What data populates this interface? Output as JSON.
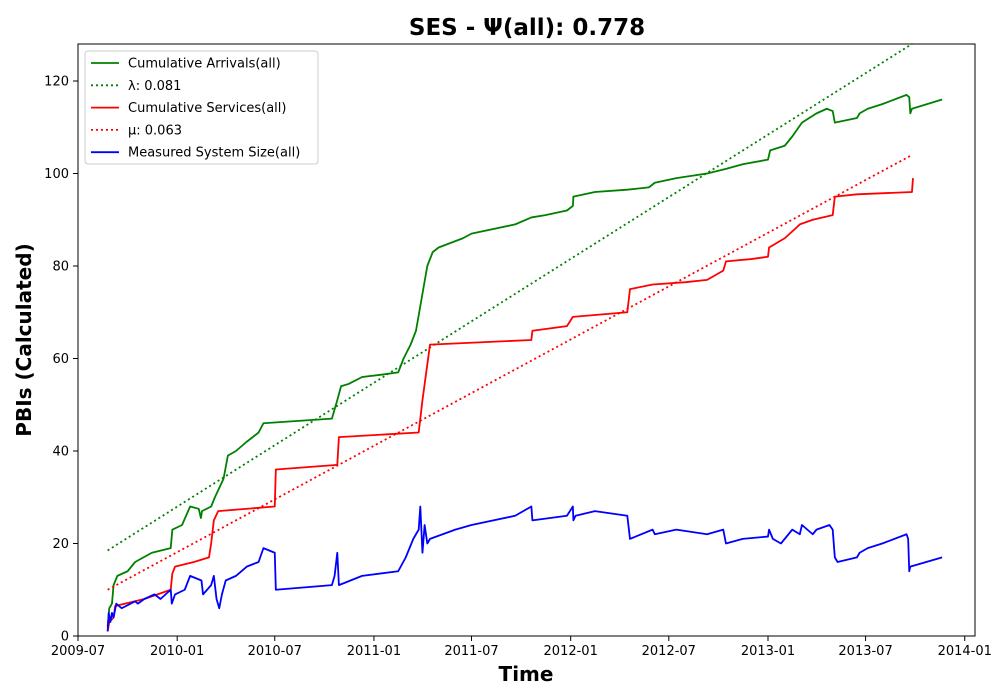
{
  "chart_data": {
    "type": "line",
    "title": "SES -  Ψ(all): 0.778",
    "xlabel": "Time",
    "ylabel": "PBIs (Calculated)",
    "xlim": [
      "2009-07-01",
      "2014-01-20"
    ],
    "ylim": [
      0,
      128
    ],
    "x_ticks": [
      "2009-07",
      "2010-01",
      "2010-07",
      "2011-01",
      "2011-07",
      "2012-01",
      "2012-07",
      "2013-01",
      "2013-07",
      "2014-01"
    ],
    "y_ticks": [
      0,
      20,
      40,
      60,
      80,
      100,
      120
    ],
    "grid": false,
    "legend": {
      "placement": "top-left"
    },
    "series": [
      {
        "name": "Cumulative Arrivals(all)",
        "style": "solid",
        "color": "#008000",
        "points": [
          [
            "2009-08-25",
            2
          ],
          [
            "2009-08-28",
            6
          ],
          [
            "2009-09-02",
            7
          ],
          [
            "2009-09-05",
            11
          ],
          [
            "2009-09-12",
            13
          ],
          [
            "2009-10-01",
            14
          ],
          [
            "2009-10-15",
            16
          ],
          [
            "2009-11-15",
            18
          ],
          [
            "2009-12-20",
            19
          ],
          [
            "2009-12-23",
            23
          ],
          [
            "2010-01-10",
            24
          ],
          [
            "2010-01-25",
            28
          ],
          [
            "2010-02-10",
            27.5
          ],
          [
            "2010-02-14",
            25.5
          ],
          [
            "2010-02-16",
            27
          ],
          [
            "2010-03-05",
            28
          ],
          [
            "2010-03-12",
            30
          ],
          [
            "2010-03-20",
            32
          ],
          [
            "2010-03-28",
            34
          ],
          [
            "2010-04-05",
            39
          ],
          [
            "2010-04-20",
            40
          ],
          [
            "2010-05-10",
            42
          ],
          [
            "2010-06-01",
            44
          ],
          [
            "2010-06-10",
            46
          ],
          [
            "2010-10-15",
            47
          ],
          [
            "2010-10-25",
            51
          ],
          [
            "2010-11-01",
            54
          ],
          [
            "2010-11-15",
            54.5
          ],
          [
            "2010-12-10",
            56
          ],
          [
            "2011-01-15",
            56.5
          ],
          [
            "2011-02-15",
            57
          ],
          [
            "2011-02-25",
            60
          ],
          [
            "2011-03-10",
            63
          ],
          [
            "2011-03-20",
            66
          ],
          [
            "2011-04-01",
            74
          ],
          [
            "2011-04-10",
            80
          ],
          [
            "2011-04-20",
            83
          ],
          [
            "2011-05-01",
            84
          ],
          [
            "2011-06-15",
            86
          ],
          [
            "2011-07-01",
            87
          ],
          [
            "2011-09-20",
            89
          ],
          [
            "2011-10-20",
            90.5
          ],
          [
            "2011-11-15",
            91
          ],
          [
            "2011-12-25",
            92
          ],
          [
            "2012-01-05",
            93
          ],
          [
            "2012-01-06",
            95
          ],
          [
            "2012-02-15",
            96
          ],
          [
            "2012-04-15",
            96.5
          ],
          [
            "2012-05-25",
            97
          ],
          [
            "2012-06-05",
            98
          ],
          [
            "2012-07-15",
            99
          ],
          [
            "2012-09-10",
            100
          ],
          [
            "2012-10-15",
            101
          ],
          [
            "2012-11-15",
            102
          ],
          [
            "2013-01-01",
            103
          ],
          [
            "2013-01-05",
            105
          ],
          [
            "2013-02-01",
            106
          ],
          [
            "2013-02-15",
            108
          ],
          [
            "2013-03-05",
            111
          ],
          [
            "2013-04-01",
            113
          ],
          [
            "2013-04-20",
            114
          ],
          [
            "2013-05-01",
            113.5
          ],
          [
            "2013-05-05",
            111
          ],
          [
            "2013-06-15",
            112
          ],
          [
            "2013-06-20",
            113
          ],
          [
            "2013-07-05",
            114
          ],
          [
            "2013-08-01",
            115
          ],
          [
            "2013-09-15",
            117
          ],
          [
            "2013-09-20",
            116.5
          ],
          [
            "2013-09-22",
            113
          ],
          [
            "2013-09-25",
            114
          ],
          [
            "2013-11-20",
            116
          ]
        ]
      },
      {
        "name": "λ: 0.081",
        "style": "dotted",
        "color": "#008000",
        "points": [
          [
            "2009-08-25",
            18.5
          ],
          [
            "2013-09-25",
            128
          ]
        ]
      },
      {
        "name": "Cumulative Services(all)",
        "style": "solid",
        "color": "#ff0000",
        "points": [
          [
            "2009-08-25",
            1
          ],
          [
            "2009-08-28",
            3
          ],
          [
            "2009-09-05",
            4
          ],
          [
            "2009-09-08",
            6.5
          ],
          [
            "2009-11-01",
            8
          ],
          [
            "2009-12-20",
            10
          ],
          [
            "2009-12-23",
            13.5
          ],
          [
            "2009-12-28",
            15
          ],
          [
            "2010-02-01",
            16
          ],
          [
            "2010-03-01",
            17
          ],
          [
            "2010-03-05",
            20
          ],
          [
            "2010-03-10",
            25
          ],
          [
            "2010-03-18",
            27
          ],
          [
            "2010-07-01",
            28
          ],
          [
            "2010-07-03",
            36
          ],
          [
            "2010-10-25",
            37
          ],
          [
            "2010-10-28",
            43
          ],
          [
            "2011-03-25",
            44
          ],
          [
            "2011-03-28",
            47
          ],
          [
            "2011-04-01",
            51
          ],
          [
            "2011-04-08",
            57
          ],
          [
            "2011-04-15",
            63
          ],
          [
            "2011-10-20",
            64
          ],
          [
            "2011-10-22",
            66
          ],
          [
            "2011-12-25",
            67
          ],
          [
            "2012-01-05",
            69
          ],
          [
            "2012-04-15",
            70
          ],
          [
            "2012-04-20",
            75
          ],
          [
            "2012-06-01",
            76
          ],
          [
            "2012-08-01",
            76.5
          ],
          [
            "2012-09-10",
            77
          ],
          [
            "2012-10-10",
            79
          ],
          [
            "2012-10-15",
            81
          ],
          [
            "2012-12-01",
            81.5
          ],
          [
            "2013-01-01",
            82
          ],
          [
            "2013-01-03",
            84
          ],
          [
            "2013-02-01",
            86
          ],
          [
            "2013-02-20",
            88
          ],
          [
            "2013-03-01",
            89
          ],
          [
            "2013-03-25",
            90
          ],
          [
            "2013-05-01",
            91
          ],
          [
            "2013-05-05",
            95
          ],
          [
            "2013-06-15",
            95.5
          ],
          [
            "2013-09-25",
            96
          ],
          [
            "2013-09-27",
            99
          ]
        ]
      },
      {
        "name": "μ: 0.063",
        "style": "dotted",
        "color": "#ff0000",
        "points": [
          [
            "2009-08-25",
            10
          ],
          [
            "2013-09-25",
            104
          ]
        ]
      },
      {
        "name": "Measured System Size(all)",
        "style": "solid",
        "color": "#0000ff",
        "points": [
          [
            "2009-08-25",
            1
          ],
          [
            "2009-08-27",
            5
          ],
          [
            "2009-08-30",
            3
          ],
          [
            "2009-09-02",
            5
          ],
          [
            "2009-09-05",
            4
          ],
          [
            "2009-09-10",
            7
          ],
          [
            "2009-09-20",
            6
          ],
          [
            "2009-10-15",
            7.5
          ],
          [
            "2009-10-20",
            7
          ],
          [
            "2009-11-01",
            8
          ],
          [
            "2009-11-20",
            9
          ],
          [
            "2009-12-01",
            8
          ],
          [
            "2009-12-20",
            10
          ],
          [
            "2009-12-22",
            7
          ],
          [
            "2009-12-28",
            9
          ],
          [
            "2010-01-15",
            10
          ],
          [
            "2010-01-25",
            13
          ],
          [
            "2010-02-15",
            12
          ],
          [
            "2010-02-18",
            9
          ],
          [
            "2010-03-05",
            11
          ],
          [
            "2010-03-10",
            13
          ],
          [
            "2010-03-15",
            8
          ],
          [
            "2010-03-20",
            6
          ],
          [
            "2010-03-25",
            9
          ],
          [
            "2010-04-01",
            12
          ],
          [
            "2010-04-20",
            13
          ],
          [
            "2010-05-10",
            15
          ],
          [
            "2010-06-01",
            16
          ],
          [
            "2010-06-10",
            19
          ],
          [
            "2010-07-01",
            18
          ],
          [
            "2010-07-03",
            10
          ],
          [
            "2010-10-15",
            11
          ],
          [
            "2010-10-20",
            13
          ],
          [
            "2010-10-25",
            18
          ],
          [
            "2010-10-28",
            11
          ],
          [
            "2010-12-10",
            13
          ],
          [
            "2011-02-15",
            14
          ],
          [
            "2011-03-01",
            17
          ],
          [
            "2011-03-15",
            21
          ],
          [
            "2011-03-25",
            23
          ],
          [
            "2011-03-28",
            28
          ],
          [
            "2011-04-01",
            18
          ],
          [
            "2011-04-05",
            24
          ],
          [
            "2011-04-10",
            20
          ],
          [
            "2011-04-15",
            21
          ],
          [
            "2011-06-01",
            23
          ],
          [
            "2011-07-01",
            24
          ],
          [
            "2011-09-20",
            26
          ],
          [
            "2011-10-20",
            28
          ],
          [
            "2011-10-22",
            25
          ],
          [
            "2011-12-25",
            26
          ],
          [
            "2012-01-05",
            28
          ],
          [
            "2012-01-06",
            25
          ],
          [
            "2012-01-10",
            26
          ],
          [
            "2012-02-15",
            27
          ],
          [
            "2012-04-15",
            26
          ],
          [
            "2012-04-20",
            21
          ],
          [
            "2012-06-01",
            23
          ],
          [
            "2012-06-05",
            22
          ],
          [
            "2012-07-15",
            23
          ],
          [
            "2012-09-10",
            22
          ],
          [
            "2012-10-10",
            23
          ],
          [
            "2012-10-15",
            20
          ],
          [
            "2012-11-15",
            21
          ],
          [
            "2013-01-01",
            21.5
          ],
          [
            "2013-01-03",
            23
          ],
          [
            "2013-01-10",
            21
          ],
          [
            "2013-01-25",
            20
          ],
          [
            "2013-02-15",
            23
          ],
          [
            "2013-03-01",
            22
          ],
          [
            "2013-03-05",
            24
          ],
          [
            "2013-03-25",
            22
          ],
          [
            "2013-04-01",
            23
          ],
          [
            "2013-04-25",
            24
          ],
          [
            "2013-05-01",
            23
          ],
          [
            "2013-05-05",
            17
          ],
          [
            "2013-05-10",
            16
          ],
          [
            "2013-06-15",
            17
          ],
          [
            "2013-06-20",
            18
          ],
          [
            "2013-07-05",
            19
          ],
          [
            "2013-08-01",
            20
          ],
          [
            "2013-09-15",
            22
          ],
          [
            "2013-09-18",
            21
          ],
          [
            "2013-09-20",
            14
          ],
          [
            "2013-09-22",
            15
          ],
          [
            "2013-11-20",
            17
          ]
        ]
      }
    ]
  }
}
